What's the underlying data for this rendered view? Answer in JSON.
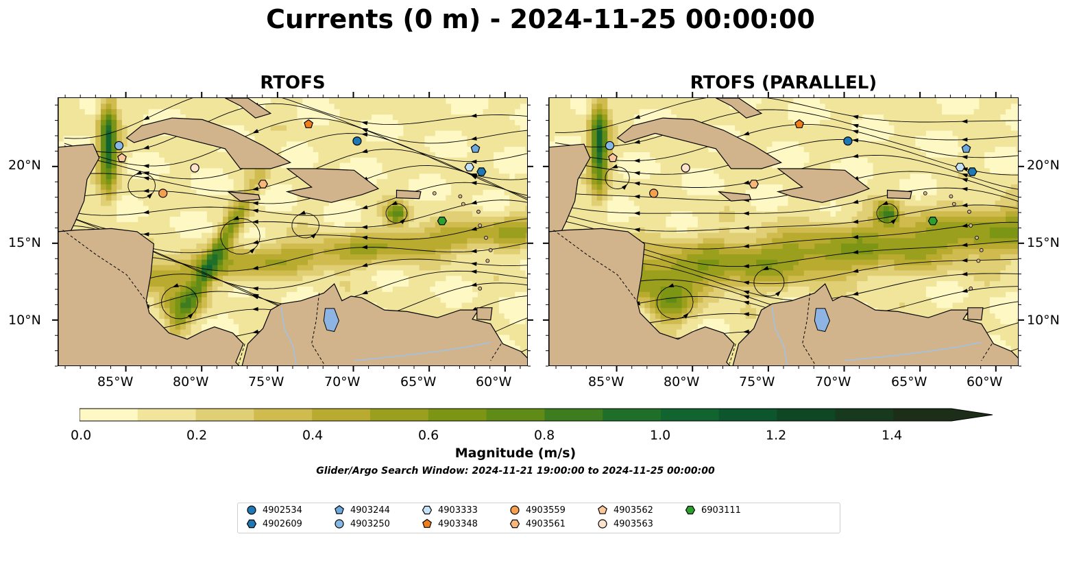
{
  "title": "Currents (0 m) - 2024-11-25 00:00:00",
  "panels": [
    {
      "id": "left",
      "title": "RTOFS"
    },
    {
      "id": "right",
      "title": "RTOFS (PARALLEL)"
    }
  ],
  "axes": {
    "lon_ticks": [
      "85°W",
      "80°W",
      "75°W",
      "70°W",
      "65°W",
      "60°W"
    ],
    "lat_ticks": [
      "20°N",
      "15°N",
      "10°N"
    ],
    "lon_range": [
      -89.5,
      -58.5
    ],
    "lat_range": [
      7.0,
      24.5
    ]
  },
  "colorbar": {
    "label": "Magnitude (m/s)",
    "ticks": [
      "0.0",
      "0.2",
      "0.4",
      "0.6",
      "0.8",
      "1.0",
      "1.2",
      "1.4"
    ],
    "range": [
      0,
      1.5
    ],
    "extend": "max",
    "colors": [
      "#fdf8c4",
      "#f1e59b",
      "#e0cf75",
      "#cfbb4e",
      "#b9ab2f",
      "#9aa01d",
      "#7d9514",
      "#5f8b16",
      "#3d7d1f",
      "#1f6f2a",
      "#116330",
      "#0c552d",
      "#0f4624",
      "#17391e",
      "#1c2e18"
    ]
  },
  "search_window": "Glider/Argo Search Window: 2024-11-21 19:00:00 to 2024-11-25 00:00:00",
  "legend": [
    {
      "id": "4902534",
      "marker": "circle",
      "color": "#1f77b4"
    },
    {
      "id": "4902609",
      "marker": "hexagon",
      "color": "#1f77b4"
    },
    {
      "id": "4903244",
      "marker": "pentagon",
      "color": "#6fa8dc"
    },
    {
      "id": "4903250",
      "marker": "circle",
      "color": "#86b8e6"
    },
    {
      "id": "4903333",
      "marker": "hexagon",
      "color": "#c6e2f5"
    },
    {
      "id": "4903348",
      "marker": "pentagon",
      "color": "#f07f1b"
    },
    {
      "id": "4903559",
      "marker": "circle",
      "color": "#f5a04e"
    },
    {
      "id": "4903561",
      "marker": "hexagon",
      "color": "#f9b67a"
    },
    {
      "id": "4903562",
      "marker": "pentagon",
      "color": "#fbc79b"
    },
    {
      "id": "4903563",
      "marker": "circle",
      "color": "#fde3cc"
    },
    {
      "id": "6903111",
      "marker": "hexagon",
      "color": "#2ca02c"
    }
  ],
  "floats": [
    {
      "id": "4903250",
      "lon": -85.5,
      "lat": 21.4
    },
    {
      "id": "4903562",
      "lon": -85.3,
      "lat": 20.6
    },
    {
      "id": "4903563",
      "lon": -80.5,
      "lat": 19.95
    },
    {
      "id": "4903559",
      "lon": -82.6,
      "lat": 18.3
    },
    {
      "id": "4903561",
      "lon": -76.0,
      "lat": 18.9
    },
    {
      "id": "4903348",
      "lon": -73.0,
      "lat": 22.8
    },
    {
      "id": "4902534",
      "lon": -69.8,
      "lat": 21.7
    },
    {
      "id": "4903244",
      "lon": -62.0,
      "lat": 21.2
    },
    {
      "id": "4903333",
      "lon": -62.4,
      "lat": 20.0
    },
    {
      "id": "4902609",
      "lon": -61.6,
      "lat": 19.7
    },
    {
      "id": "6903111",
      "lon": -64.2,
      "lat": 16.5
    }
  ],
  "colors": {
    "land": "#d2b48c",
    "lake": "#8eb4e3",
    "river": "#a3c1e3",
    "ocean_base": "#e8d98a"
  }
}
